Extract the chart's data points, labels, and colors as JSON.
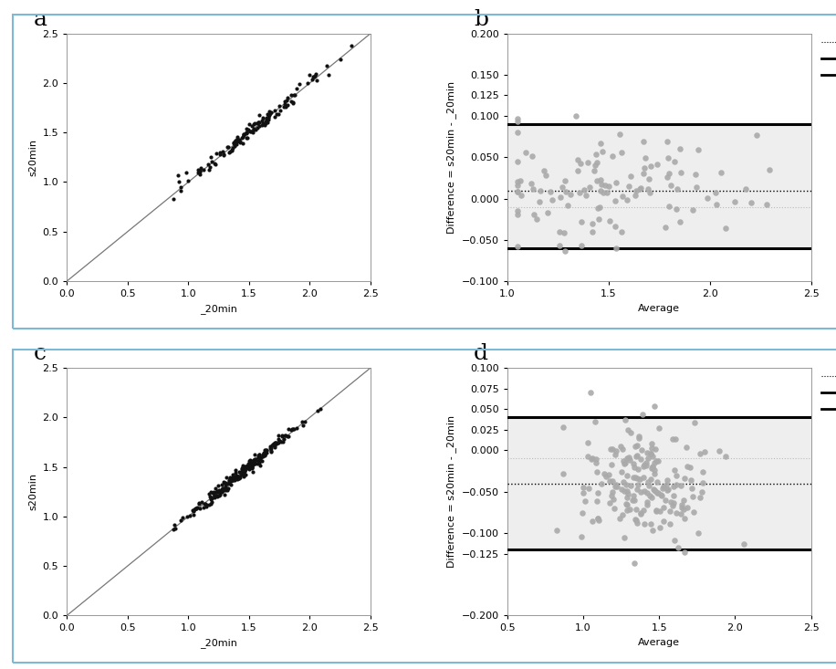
{
  "panel_a": {
    "xlabel": "_20min",
    "ylabel": "s20min",
    "xlim": [
      0.0,
      2.5
    ],
    "ylim": [
      0.0,
      2.5
    ],
    "xticks": [
      0.0,
      0.5,
      1.0,
      1.5,
      2.0,
      2.5
    ],
    "yticks": [
      0.0,
      0.5,
      1.0,
      1.5,
      2.0,
      2.5
    ],
    "scatter_color": "#111111",
    "line_color": "#777777",
    "n_points": 130,
    "x_center": 1.55,
    "x_spread": 0.32,
    "noise": 0.038,
    "seed": 42
  },
  "panel_b": {
    "xlabel": "Average",
    "ylabel": "Difference = s20min - _20min",
    "xlim": [
      1.0,
      2.5
    ],
    "ylim": [
      -0.1,
      0.2
    ],
    "xticks": [
      1.0,
      1.5,
      2.0,
      2.5
    ],
    "yticks": [
      -0.1,
      -0.05,
      0.0,
      0.05,
      0.1,
      0.125,
      0.15,
      0.2
    ],
    "ytick_labels": [
      "-0.100",
      "",
      "0.000",
      "0.050",
      "0.100",
      "0.125",
      "",
      "0.200"
    ],
    "mean_diff": 0.01,
    "second_line": -0.01,
    "upper_loa": 0.09,
    "lower_loa": -0.06,
    "scatter_color": "#aaaaaa",
    "band_color": "#eeeeee",
    "n_points": 120,
    "x_center": 1.5,
    "x_spread": 0.35,
    "seed": 43
  },
  "panel_c": {
    "xlabel": "_20min",
    "ylabel": "s20min",
    "xlim": [
      0.0,
      2.5
    ],
    "ylim": [
      0.0,
      2.5
    ],
    "xticks": [
      0.0,
      0.5,
      1.0,
      1.5,
      2.0,
      2.5
    ],
    "yticks": [
      0.0,
      0.5,
      1.0,
      1.5,
      2.0,
      2.5
    ],
    "scatter_color": "#111111",
    "line_color": "#777777",
    "n_points": 250,
    "x_center": 1.45,
    "x_spread": 0.22,
    "noise": 0.03,
    "seed": 44
  },
  "panel_d": {
    "xlabel": "Average",
    "ylabel": "Difference = s20min - _20min",
    "xlim": [
      0.5,
      2.5
    ],
    "ylim": [
      -0.2,
      0.1
    ],
    "xticks": [
      0.5,
      1.0,
      1.5,
      2.0,
      2.5
    ],
    "yticks": [
      -0.2,
      -0.125,
      -0.1,
      -0.05,
      0.0,
      0.025,
      0.05,
      0.075,
      0.1
    ],
    "ytick_labels": [
      "-0.200",
      "-0.125",
      "",
      "",
      "0.000",
      "0.025",
      "",
      "",
      "0.100"
    ],
    "mean_diff": -0.04,
    "second_line": -0.01,
    "upper_loa": 0.04,
    "lower_loa": -0.12,
    "scatter_color": "#aaaaaa",
    "band_color": "#eeeeee",
    "n_points": 200,
    "x_center": 1.4,
    "x_spread": 0.22,
    "seed": 45
  },
  "panel_label_fontsize": 18,
  "axis_label_fontsize": 8,
  "tick_fontsize": 8,
  "legend_fontsize": 7,
  "border_color": "#7fb8d4",
  "background_color": "#ffffff"
}
